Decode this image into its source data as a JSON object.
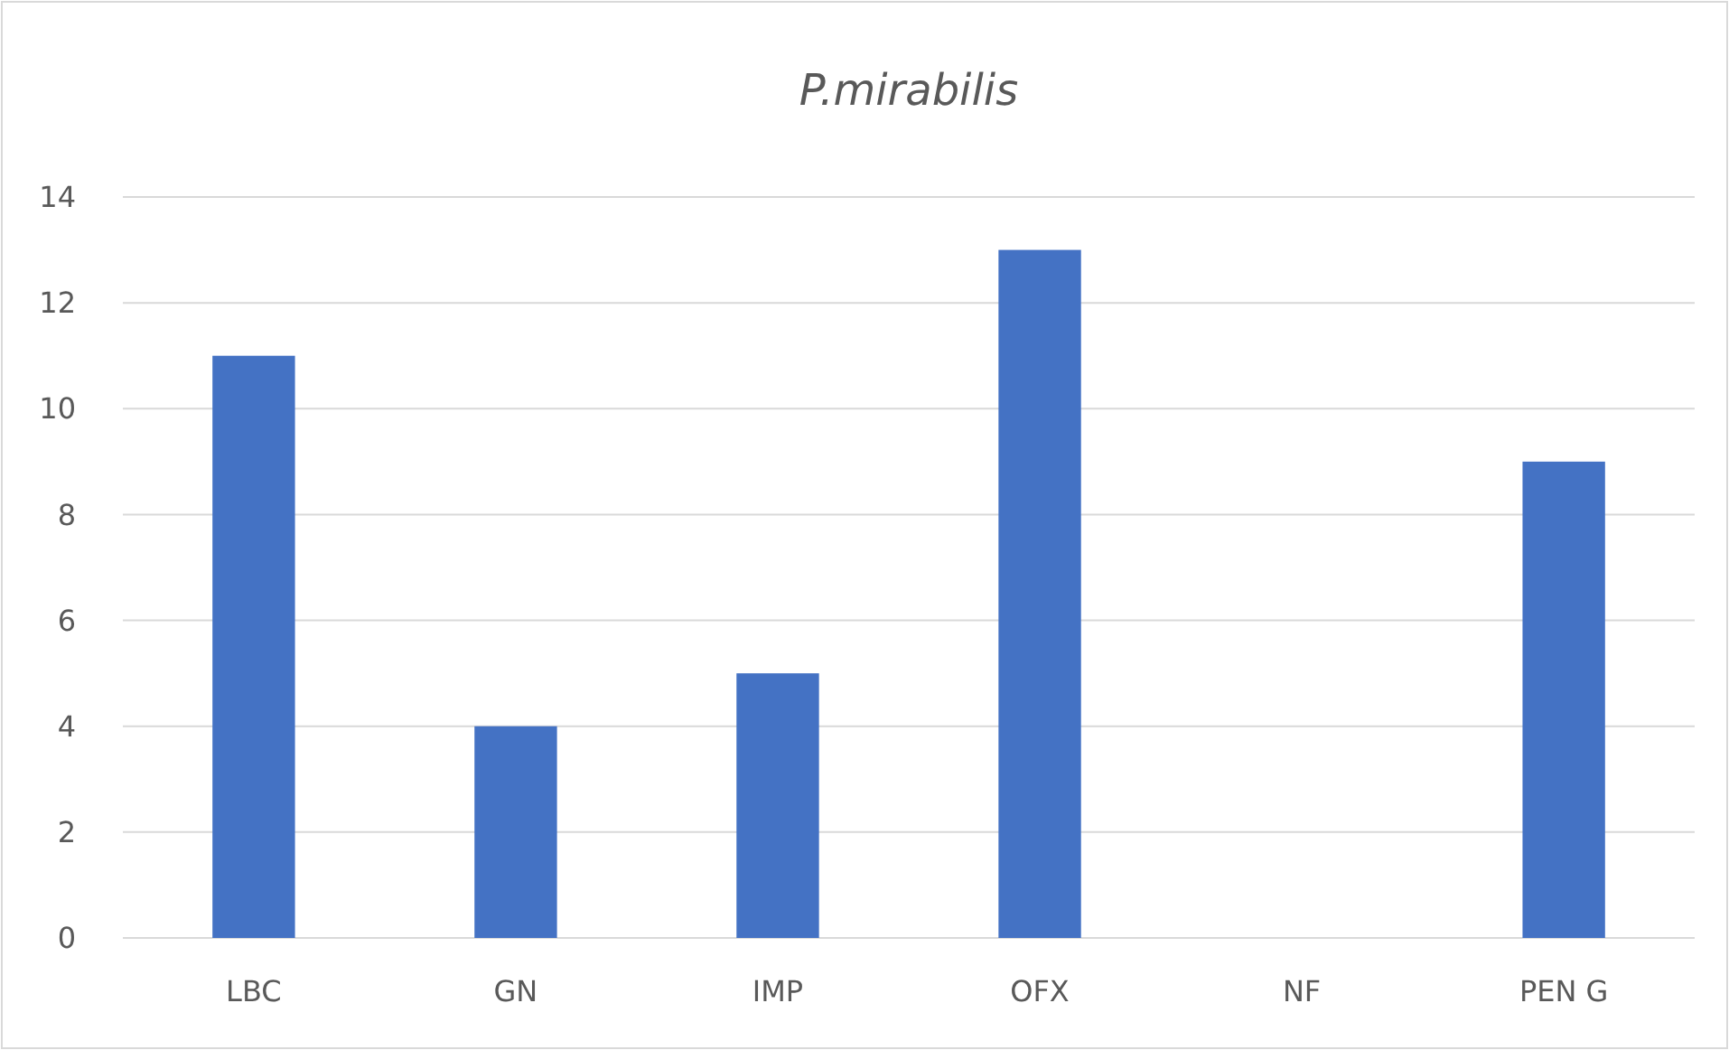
{
  "chart_data": {
    "type": "bar",
    "title": "P.mirabilis",
    "categories": [
      "LBC",
      "GN",
      "IMP",
      "OFX",
      "NF",
      "PEN G"
    ],
    "values": [
      11,
      4,
      5,
      13,
      0,
      9
    ],
    "color": "#4472c4",
    "ylim": [
      0,
      14
    ],
    "yticks": [
      0,
      2,
      4,
      6,
      8,
      10,
      12,
      14
    ],
    "grid": "y"
  }
}
